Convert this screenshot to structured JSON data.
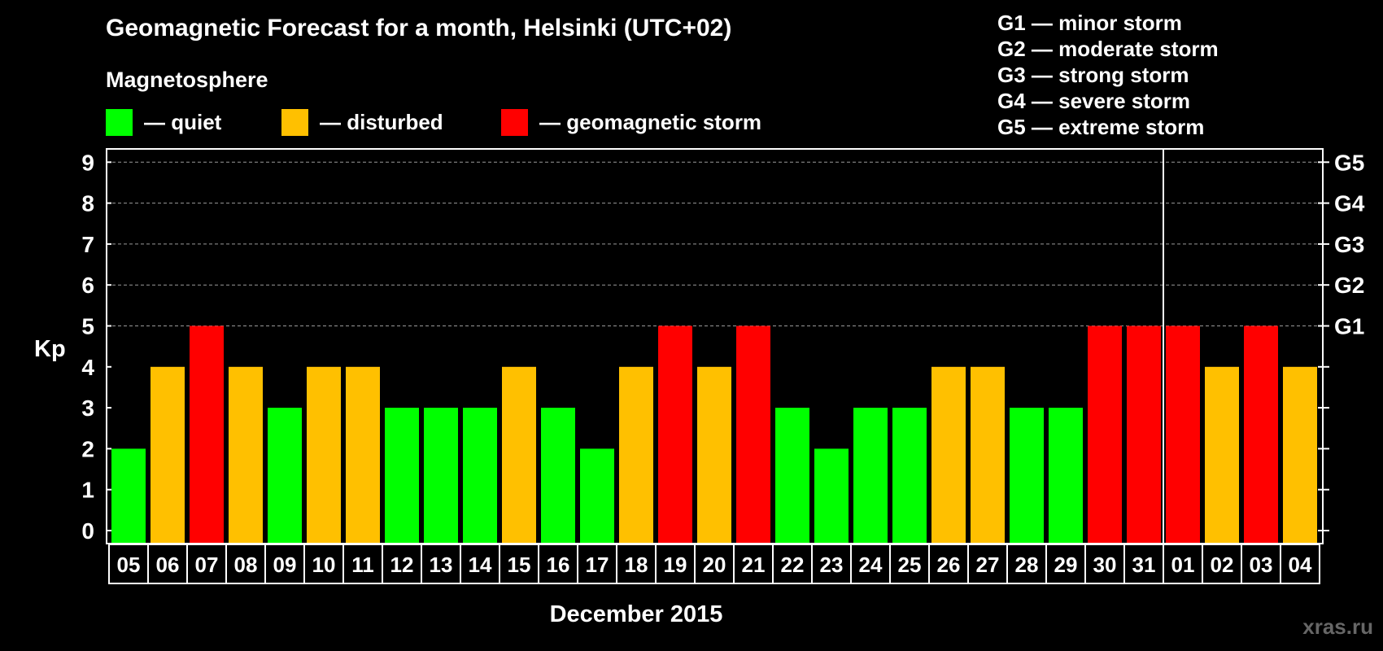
{
  "title": "Geomagnetic Forecast for a month, Helsinki (UTC+02)",
  "section_label": "Magnetosphere",
  "legend": [
    {
      "label": "— quiet",
      "color": "#00ff00"
    },
    {
      "label": "— disturbed",
      "color": "#ffc000"
    },
    {
      "label": "— geomagnetic storm",
      "color": "#ff0000"
    }
  ],
  "storm_scale": [
    "G1 — minor storm",
    "G2 — moderate storm",
    "G3 — strong storm",
    "G4 — severe storm",
    "G5 — extreme storm"
  ],
  "watermark": "xras.ru",
  "chart_data": {
    "type": "bar",
    "title": "Geomagnetic Forecast for a month, Helsinki (UTC+02)",
    "xlabel": "December 2015",
    "ylabel": "Kp",
    "ylim": [
      0,
      9
    ],
    "yticks": [
      "0",
      "1",
      "2",
      "3",
      "4",
      "5",
      "6",
      "7",
      "8",
      "9"
    ],
    "right_ticks": [
      {
        "value": 5,
        "label": "G1"
      },
      {
        "value": 6,
        "label": "G2"
      },
      {
        "value": 7,
        "label": "G3"
      },
      {
        "value": 8,
        "label": "G4"
      },
      {
        "value": 9,
        "label": "G5"
      }
    ],
    "categories": [
      "05",
      "06",
      "07",
      "08",
      "09",
      "10",
      "11",
      "12",
      "13",
      "14",
      "15",
      "16",
      "17",
      "18",
      "19",
      "20",
      "21",
      "22",
      "23",
      "24",
      "25",
      "26",
      "27",
      "28",
      "29",
      "30",
      "31",
      "01",
      "02",
      "03",
      "04"
    ],
    "values": [
      2,
      4,
      5,
      4,
      3,
      4,
      4,
      3,
      3,
      3,
      4,
      3,
      2,
      4,
      5,
      4,
      5,
      3,
      2,
      3,
      3,
      4,
      4,
      3,
      3,
      5,
      5,
      5,
      4,
      5,
      4
    ],
    "month_boundary_after": "31",
    "color_rule": {
      "quiet": "Kp <= 3",
      "disturbed": "Kp = 4",
      "storm": "Kp >= 5"
    },
    "colors": {
      "quiet": "#00ff00",
      "disturbed": "#ffc000",
      "storm": "#ff0000"
    },
    "grid": "dashed at 5-9"
  }
}
